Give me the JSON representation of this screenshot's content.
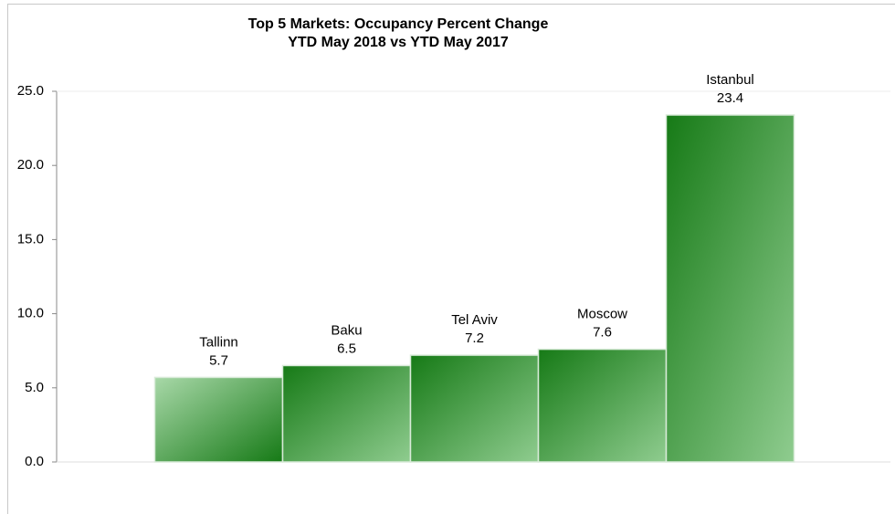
{
  "chart_data": {
    "type": "bar",
    "title": "Top 5 Markets: Occupancy Percent Change",
    "subtitle": "YTD May 2018 vs YTD May 2017",
    "categories": [
      "Tallinn",
      "Baku",
      "Tel Aviv",
      "Moscow",
      "Istanbul"
    ],
    "values": [
      5.7,
      6.5,
      7.2,
      7.6,
      23.4
    ],
    "color": "#1a7f1a",
    "ylim": [
      0,
      25
    ],
    "yticks": [
      {
        "value": 0,
        "label": "0.0"
      },
      {
        "value": 5,
        "label": "5.0"
      },
      {
        "value": 10,
        "label": "10.0"
      },
      {
        "value": 15,
        "label": "15.0"
      },
      {
        "value": 20,
        "label": "20.0"
      },
      {
        "value": 25,
        "label": "25.0"
      }
    ],
    "grid": false
  }
}
